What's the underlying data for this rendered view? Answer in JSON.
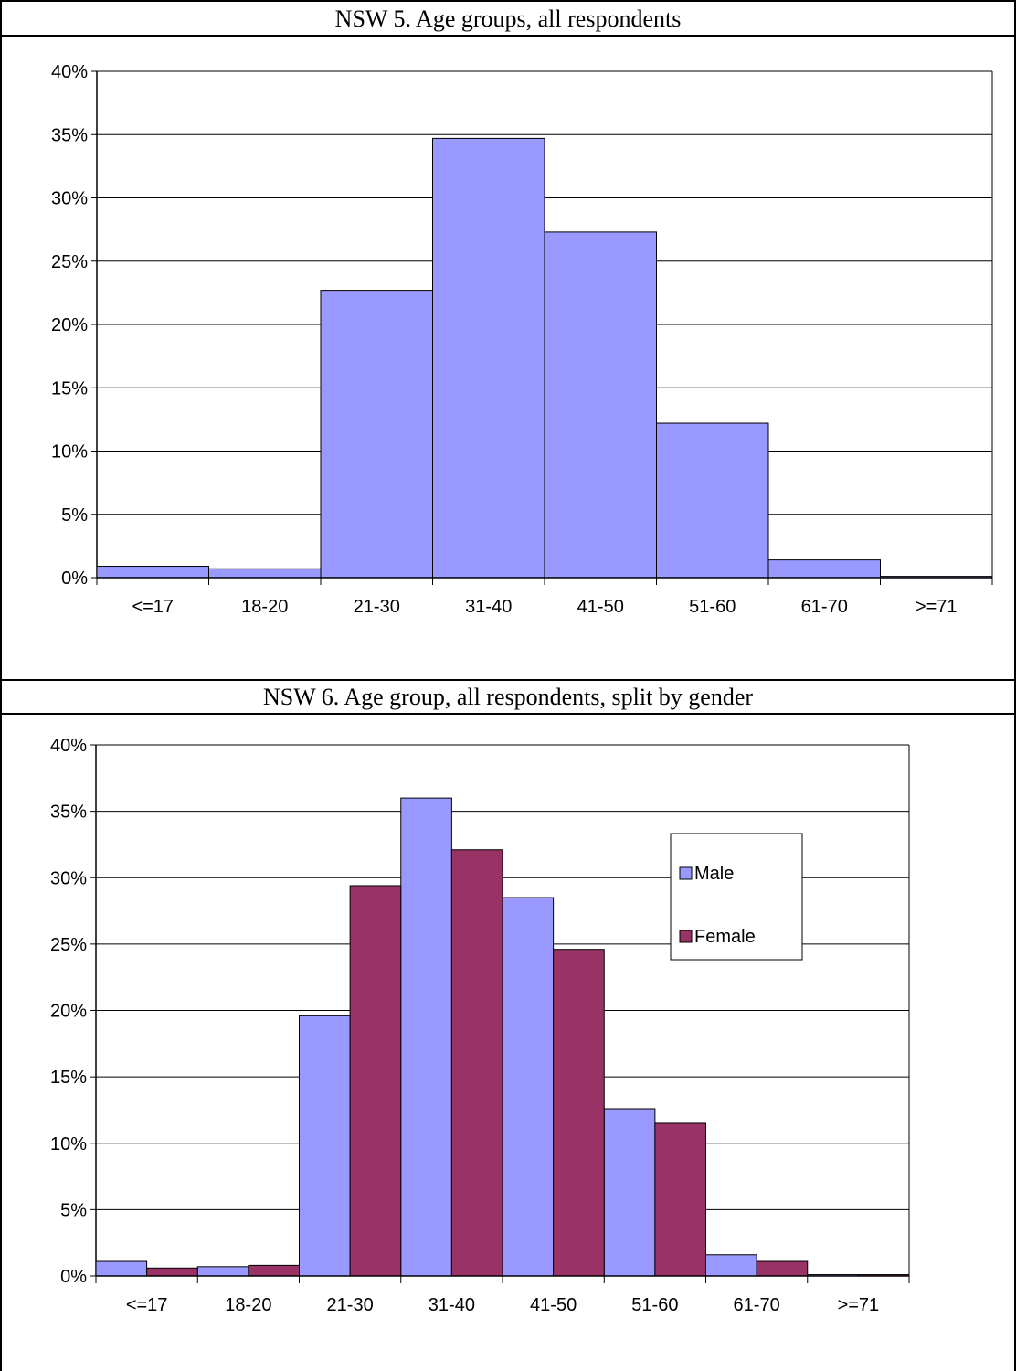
{
  "chart_data": [
    {
      "type": "bar",
      "title": "NSW 5. Age groups, all respondents",
      "categories": [
        "<=17",
        "18-20",
        "21-30",
        "31-40",
        "41-50",
        "51-60",
        "61-70",
        ">=71"
      ],
      "ylim": [
        0,
        40
      ],
      "yticks": [
        "0%",
        "5%",
        "10%",
        "15%",
        "20%",
        "25%",
        "30%",
        "35%",
        "40%"
      ],
      "grid": true,
      "series": [
        {
          "color": "#9999ff",
          "values": [
            0.9,
            0.7,
            22.7,
            34.7,
            27.3,
            12.2,
            1.4,
            0.1
          ]
        }
      ]
    },
    {
      "type": "bar",
      "title": "NSW 6. Age group, all respondents, split by gender",
      "categories": [
        "<=17",
        "18-20",
        "21-30",
        "31-40",
        "41-50",
        "51-60",
        "61-70",
        ">=71"
      ],
      "ylim": [
        0,
        40
      ],
      "yticks": [
        "0%",
        "5%",
        "10%",
        "15%",
        "20%",
        "25%",
        "30%",
        "35%",
        "40%"
      ],
      "grid": true,
      "legend": "top-right",
      "series": [
        {
          "name": "Male",
          "color": "#9999ff",
          "values": [
            1.1,
            0.7,
            19.6,
            36.0,
            28.5,
            12.6,
            1.6,
            0.1
          ]
        },
        {
          "name": "Female",
          "color": "#993366",
          "values": [
            0.6,
            0.8,
            29.4,
            32.1,
            24.6,
            11.5,
            1.1,
            0.1
          ]
        }
      ]
    }
  ]
}
